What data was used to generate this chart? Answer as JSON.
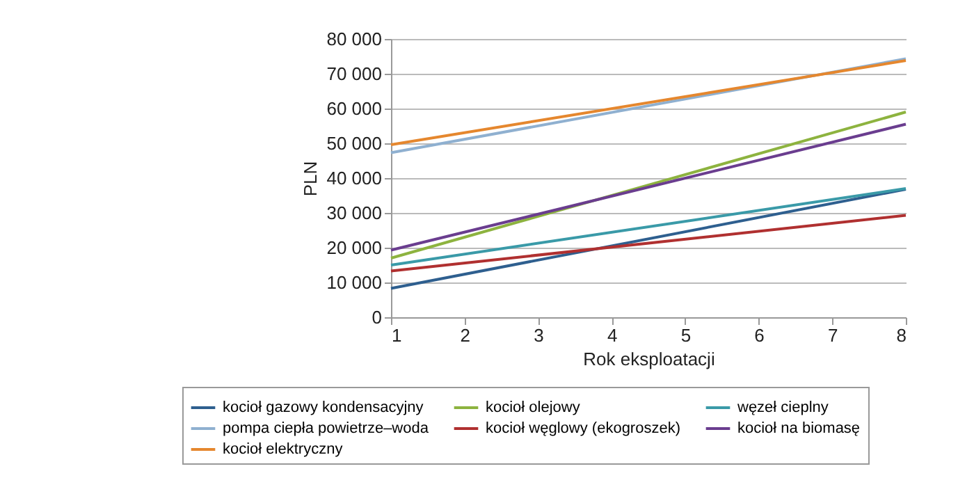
{
  "chart_data": {
    "type": "line",
    "xlabel": "Rok eksploatacji",
    "ylabel": "PLN",
    "x": [
      1,
      8
    ],
    "series": [
      {
        "name": "kocioł gazowy kondensacyjny",
        "color": "#2e5f8f",
        "values": [
          8300,
          36800
        ]
      },
      {
        "name": "kocioł olejowy",
        "color": "#8db33f",
        "values": [
          17000,
          59000
        ]
      },
      {
        "name": "węzeł cieplny",
        "color": "#3a9aa8",
        "values": [
          15000,
          37000
        ]
      },
      {
        "name": "pompa ciepła powietrze–woda",
        "color": "#8fb0d0",
        "values": [
          47300,
          74300
        ]
      },
      {
        "name": "kocioł węglowy (ekogroszek)",
        "color": "#b03030",
        "values": [
          13300,
          29300
        ]
      },
      {
        "name": "kocioł na biomasę",
        "color": "#6a3d8f",
        "values": [
          19300,
          55500
        ]
      },
      {
        "name": "kocioł elektryczny",
        "color": "#e5872e",
        "values": [
          49600,
          73800
        ]
      }
    ],
    "xlim": [
      1,
      8
    ],
    "xticks": [
      1,
      2,
      3,
      4,
      5,
      6,
      7,
      8
    ],
    "ylim": [
      0,
      80000
    ],
    "yticks": [
      0,
      {
        "value": 10000,
        "label": "10 000"
      },
      {
        "value": 20000,
        "label": "20 000"
      },
      {
        "value": 30000,
        "label": "30 000"
      },
      {
        "value": 40000,
        "label": "40 000"
      },
      {
        "value": 50000,
        "label": "50 000"
      },
      {
        "value": 60000,
        "label": "60 000"
      },
      {
        "value": 70000,
        "label": "70 000"
      },
      {
        "value": 80000,
        "label": "80 000"
      }
    ],
    "grid": "y",
    "legend": "bottom"
  }
}
